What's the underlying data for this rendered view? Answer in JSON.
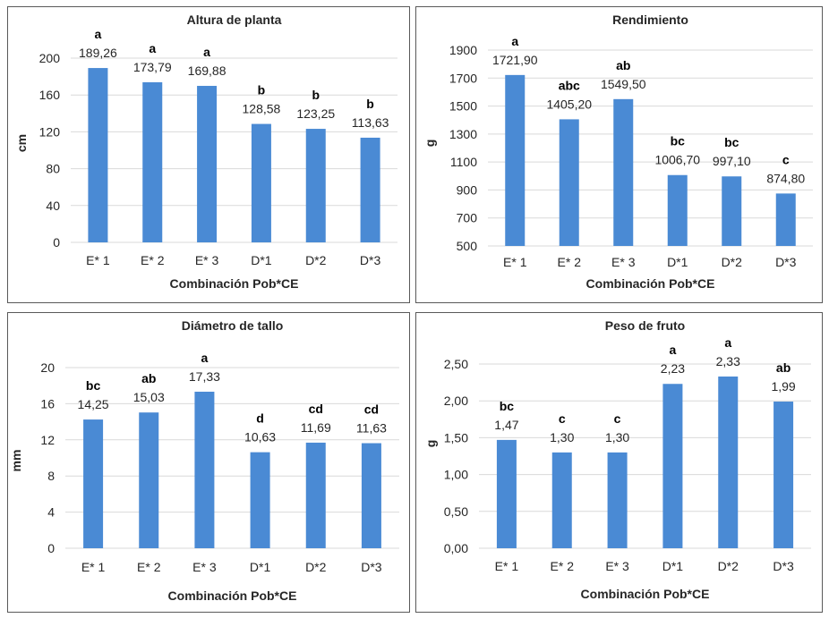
{
  "bar_color": "#4a8ad4",
  "chart_data": [
    {
      "type": "bar",
      "title": "Altura de planta",
      "xlabel": "Combinación Pob*CE",
      "ylabel": "cm",
      "categories": [
        "E* 1",
        "E* 2",
        "E* 3",
        "D*1",
        "D*2",
        "D*3"
      ],
      "values": [
        189.26,
        173.79,
        169.88,
        128.58,
        123.25,
        113.63
      ],
      "value_labels": [
        "189,26",
        "173,79",
        "169,88",
        "128,58",
        "123,25",
        "113,63"
      ],
      "letters": [
        "a",
        "a",
        "a",
        "b",
        "b",
        "b"
      ],
      "ylim": [
        0,
        200
      ],
      "yticks": [
        0,
        40,
        80,
        120,
        160,
        200
      ],
      "ytick_labels": [
        "0",
        "40",
        "80",
        "120",
        "160",
        "200"
      ]
    },
    {
      "type": "bar",
      "title": "Rendimiento",
      "xlabel": "Combinación Pob*CE",
      "ylabel": "g",
      "categories": [
        "E* 1",
        "E* 2",
        "E* 3",
        "D*1",
        "D*2",
        "D*3"
      ],
      "values": [
        1721.9,
        1405.2,
        1549.5,
        1006.7,
        997.1,
        874.8
      ],
      "value_labels": [
        "1721,90",
        "1405,20",
        "1549,50",
        "1006,70",
        "997,10",
        "874,80"
      ],
      "letters": [
        "a",
        "abc",
        "ab",
        "bc",
        "bc",
        "c"
      ],
      "ylim": [
        500,
        1900
      ],
      "yticks": [
        500,
        700,
        900,
        1100,
        1300,
        1500,
        1700,
        1900
      ],
      "ytick_labels": [
        "500",
        "700",
        "900",
        "1100",
        "1300",
        "1500",
        "1700",
        "1900"
      ]
    },
    {
      "type": "bar",
      "title": "Diámetro de tallo",
      "xlabel": "Combinación Pob*CE",
      "ylabel": "mm",
      "categories": [
        "E* 1",
        "E* 2",
        "E* 3",
        "D*1",
        "D*2",
        "D*3"
      ],
      "values": [
        14.25,
        15.03,
        17.33,
        10.63,
        11.69,
        11.63
      ],
      "value_labels": [
        "14,25",
        "15,03",
        "17,33",
        "10,63",
        "11,69",
        "11,63"
      ],
      "letters": [
        "bc",
        "ab",
        "a",
        "d",
        "cd",
        "cd"
      ],
      "ylim": [
        0,
        20
      ],
      "yticks": [
        0,
        4,
        8,
        12,
        16,
        20
      ],
      "ytick_labels": [
        "0",
        "4",
        "8",
        "12",
        "16",
        "20"
      ]
    },
    {
      "type": "bar",
      "title": "Peso de fruto",
      "xlabel": "Combinación Pob*CE",
      "ylabel": "g",
      "categories": [
        "E* 1",
        "E* 2",
        "E* 3",
        "D*1",
        "D*2",
        "D*3"
      ],
      "values": [
        1.47,
        1.3,
        1.3,
        2.23,
        2.33,
        1.99
      ],
      "value_labels": [
        "1,47",
        "1,30",
        "1,30",
        "2,23",
        "2,33",
        "1,99"
      ],
      "letters": [
        "bc",
        "c",
        "c",
        "a",
        "a",
        "ab"
      ],
      "ylim": [
        0,
        2.5
      ],
      "yticks": [
        0,
        0.5,
        1.0,
        1.5,
        2.0,
        2.5
      ],
      "ytick_labels": [
        "0,00",
        "0,50",
        "1,00",
        "1,50",
        "2,00",
        "2,50"
      ]
    }
  ]
}
